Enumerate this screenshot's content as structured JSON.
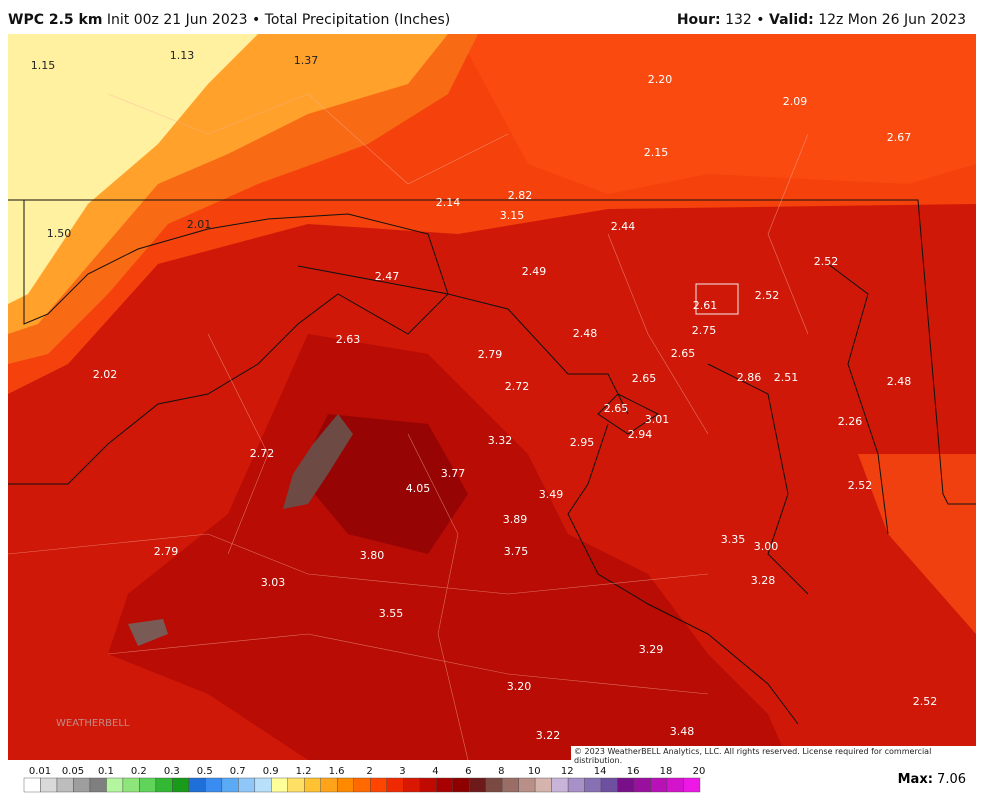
{
  "header": {
    "model": "WPC 2.5 km",
    "description": "Init 00z 21 Jun 2023 • Total Precipitation (Inches)",
    "hour_label": "Hour:",
    "hour": "132 •",
    "valid_label": "Valid:",
    "valid": "12z Mon 26 Jun 2023"
  },
  "map": {
    "labels": [
      "1.15",
      "1.13",
      "1.37",
      "2.20",
      "2.09",
      "2.67",
      "2.15",
      "2.14",
      "2.82",
      "3.15",
      "2.44",
      "1.50",
      "2.01",
      "2.47",
      "2.49",
      "2.52",
      "2.61",
      "2.52",
      "2.63",
      "2.48",
      "2.75",
      "2.79",
      "2.65",
      "2.72",
      "2.65",
      "2.86",
      "2.51",
      "2.48",
      "2.02",
      "2.65",
      "3.01",
      "3.32",
      "2.95",
      "2.94",
      "2.26",
      "2.72",
      "3.77",
      "4.05",
      "3.49",
      "2.52",
      "3.89",
      "3.35",
      "3.00",
      "2.79",
      "3.80",
      "3.75",
      "3.03",
      "3.28",
      "3.55",
      "3.29",
      "3.20",
      "2.52",
      "3.48",
      "3.22"
    ],
    "copyright": "© 2023 WeatherBELL Analytics, LLC. All rights reserved. License required for commercial distribution.",
    "logo": "WEATHERBELL"
  },
  "legend": {
    "labels": [
      "0.01",
      "0.05",
      "0.1",
      "0.2",
      "0.3",
      "0.5",
      "0.7",
      "0.9",
      "1.2",
      "1.6",
      "2",
      "3",
      "4",
      "6",
      "8",
      "10",
      "12",
      "14",
      "16",
      "18",
      "20"
    ],
    "colors": [
      "#ffffff",
      "#d9d9d9",
      "#bdbdbd",
      "#9e9e9e",
      "#7f7f7f",
      "#b4f5a0",
      "#8ee67a",
      "#5fd35a",
      "#33b833",
      "#1a9a1a",
      "#1f6fd8",
      "#3a8cf0",
      "#5aaaf5",
      "#8fc8f8",
      "#b8e0fb",
      "#ffff99",
      "#ffe066",
      "#ffc233",
      "#ffa31a",
      "#ff8a00",
      "#ff6a00",
      "#ff4500",
      "#f02a00",
      "#d81800",
      "#c00a00",
      "#a80000",
      "#8e0000",
      "#6e1a1a",
      "#7a4a42",
      "#9a6e66",
      "#b89088",
      "#d6b4ae",
      "#c8b4d8",
      "#a890c8",
      "#8870b4",
      "#6e50a0",
      "#7a0f8a",
      "#9a109e",
      "#b812b6",
      "#d414cc",
      "#ee18e6"
    ],
    "max_label": "Max:",
    "max": "7.06"
  }
}
